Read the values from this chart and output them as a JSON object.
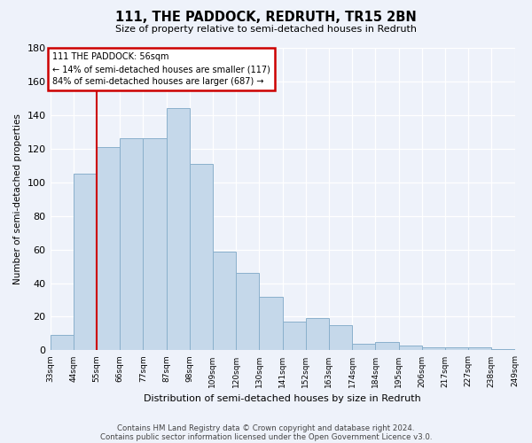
{
  "title": "111, THE PADDOCK, REDRUTH, TR15 2BN",
  "subtitle": "Size of property relative to semi-detached houses in Redruth",
  "xlabel": "Distribution of semi-detached houses by size in Redruth",
  "ylabel": "Number of semi-detached properties",
  "categories": [
    "33sqm",
    "44sqm",
    "55sqm",
    "66sqm",
    "77sqm",
    "87sqm",
    "98sqm",
    "109sqm",
    "120sqm",
    "130sqm",
    "141sqm",
    "152sqm",
    "163sqm",
    "174sqm",
    "184sqm",
    "195sqm",
    "206sqm",
    "217sqm",
    "227sqm",
    "238sqm",
    "249sqm"
  ],
  "values": [
    9,
    105,
    121,
    126,
    126,
    144,
    111,
    59,
    46,
    32,
    17,
    19,
    15,
    4,
    5,
    3,
    2,
    2,
    2,
    1
  ],
  "bar_color": "#c5d8ea",
  "bar_edge_color": "#8ab0cc",
  "annotation_title": "111 THE PADDOCK: 56sqm",
  "annotation_line1": "← 14% of semi-detached houses are smaller (117)",
  "annotation_line2": "84% of semi-detached houses are larger (687) →",
  "red_line_bar_index": 1.5,
  "footer1": "Contains HM Land Registry data © Crown copyright and database right 2024.",
  "footer2": "Contains public sector information licensed under the Open Government Licence v3.0.",
  "ylim": [
    0,
    180
  ],
  "yticks": [
    0,
    20,
    40,
    60,
    80,
    100,
    120,
    140,
    160,
    180
  ],
  "bg_color": "#eef2fa",
  "grid_color": "#ffffff",
  "annotation_box_color": "#ffffff",
  "annotation_box_edge": "#cc0000",
  "red_line_color": "#cc0000"
}
